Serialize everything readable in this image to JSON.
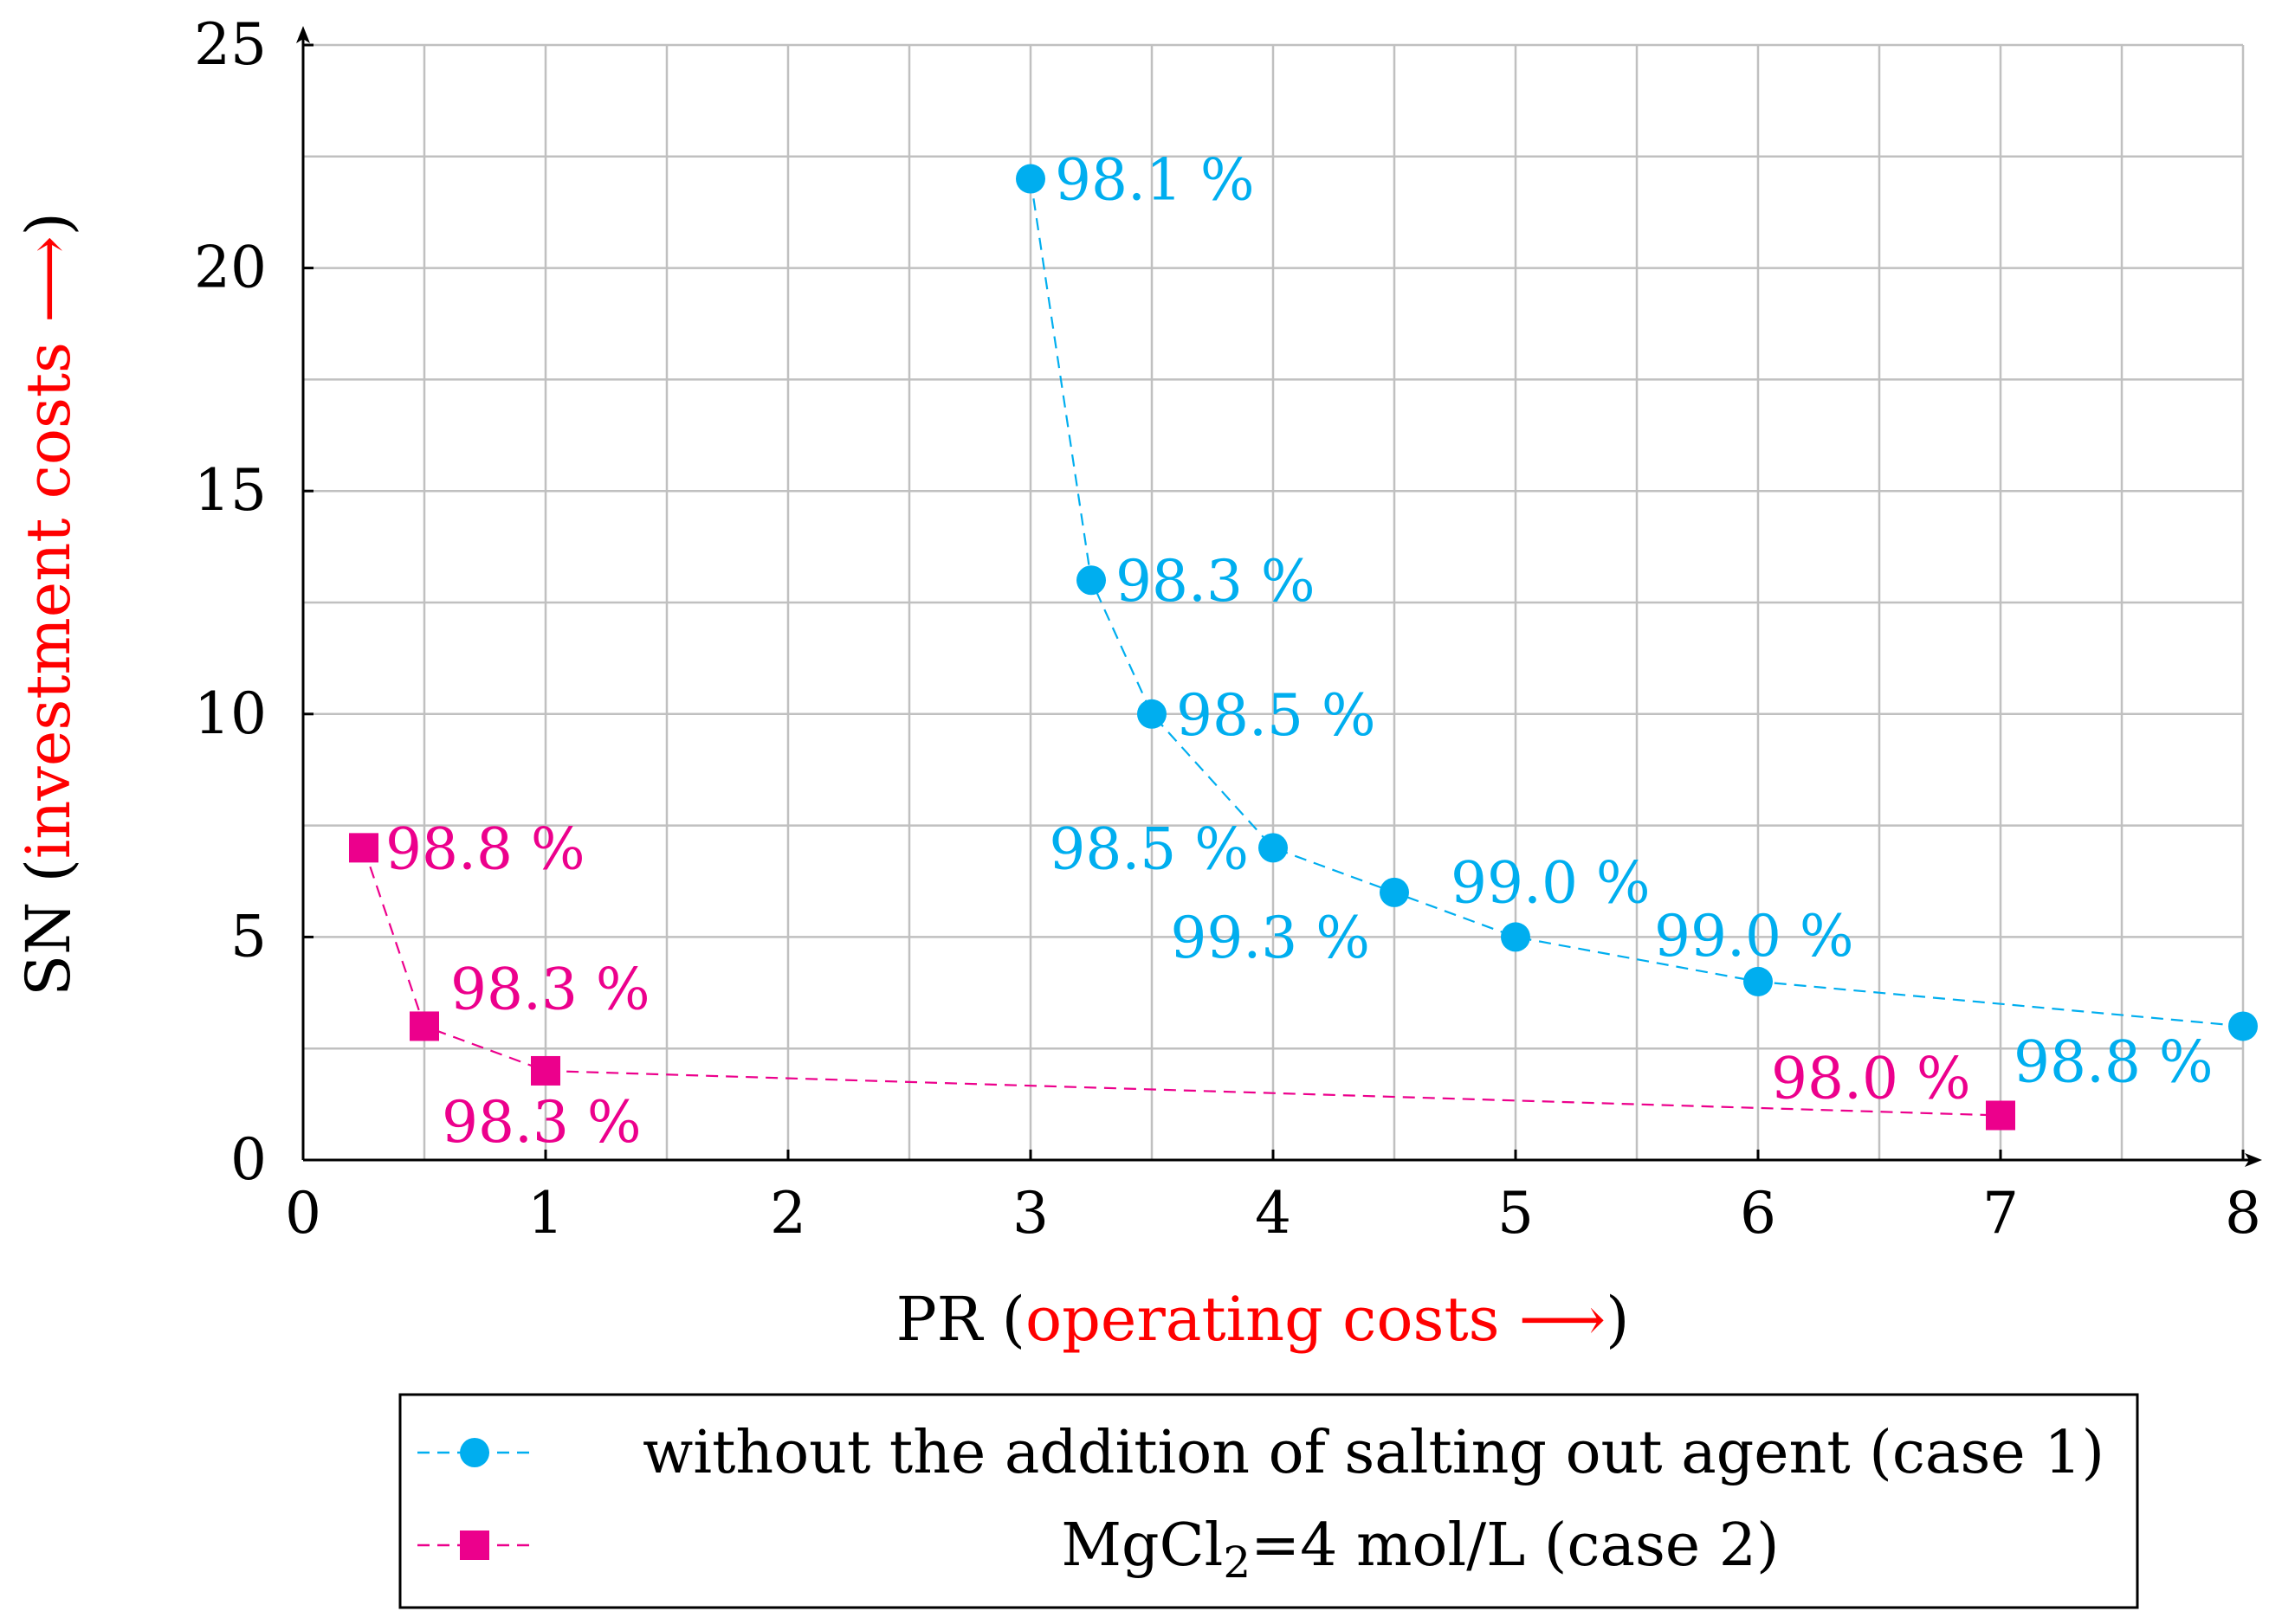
{
  "chart_data": {
    "type": "scatter",
    "title": "",
    "xlabel": {
      "prefix": "PR (",
      "highlight": "operating costs ⟶",
      "suffix": ")"
    },
    "ylabel": {
      "prefix": "SN (",
      "highlight": "investment costs ⟶",
      "suffix": ")"
    },
    "xlim": [
      0,
      8
    ],
    "ylim": [
      0,
      25
    ],
    "x_ticks": [
      "0",
      "1",
      "2",
      "3",
      "4",
      "5",
      "6",
      "7",
      "8"
    ],
    "y_ticks": [
      "0",
      "5",
      "10",
      "15",
      "20",
      "25"
    ],
    "x_tick_values": [
      0,
      1,
      2,
      3,
      4,
      5,
      6,
      7,
      8
    ],
    "y_tick_values": [
      0,
      5,
      10,
      15,
      20,
      25
    ],
    "grid": true,
    "highlight_color": "#ff0000",
    "series": [
      {
        "name": "without the addition of salting out agent (case 1)",
        "marker": "circle",
        "color": "#00aeef",
        "x": [
          3,
          3.25,
          3.5,
          4,
          4.5,
          5,
          6,
          8
        ],
        "y": [
          22,
          13,
          10,
          7,
          6,
          5,
          4,
          3
        ],
        "labels": [
          "98.1 %",
          "98.3 %",
          "98.5 %",
          "98.5 %",
          "99.3 %",
          "99.0 %",
          "99.0 %",
          "98.8 %"
        ]
      },
      {
        "name_parts": [
          "MgCl",
          "2",
          "=4 mol/L (case 2)"
        ],
        "marker": "square",
        "color": "#ec008c",
        "x": [
          0.25,
          0.5,
          1,
          7
        ],
        "y": [
          7,
          3,
          2,
          1
        ],
        "labels": [
          "98.8 %",
          "98.3 %",
          "98.3 %",
          "98.0 %"
        ]
      }
    ]
  }
}
